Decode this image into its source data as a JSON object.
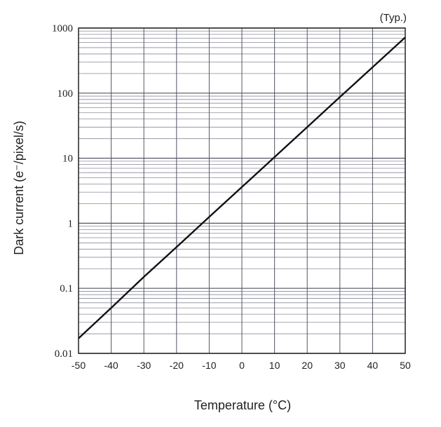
{
  "chart_data": {
    "type": "line",
    "annotation": "(Typ.)",
    "xlabel": "Temperature (°C)",
    "ylabel": "Dark current (e⁻/pixel/s)",
    "xlim": [
      -50,
      50
    ],
    "ylim": [
      0.01,
      1000
    ],
    "y_scale": "log",
    "grid": true,
    "x_ticks": [
      -50,
      -40,
      -30,
      -20,
      -10,
      0,
      10,
      20,
      30,
      40,
      50
    ],
    "x_tick_labels": [
      "-50",
      "-40",
      "-30",
      "-20",
      "-10",
      "0",
      "10",
      "20",
      "30",
      "40",
      "50"
    ],
    "y_ticks": [
      0.01,
      0.1,
      1,
      10,
      100,
      1000
    ],
    "y_tick_labels": [
      "0.01",
      "0.1",
      "1",
      "10",
      "100",
      "1000"
    ],
    "series": [
      {
        "x": [
          -50,
          -40,
          -30,
          -20,
          -10,
          0,
          10,
          20,
          30,
          40,
          50
        ],
        "y": [
          0.017,
          0.05,
          0.15,
          0.43,
          1.25,
          3.6,
          10.4,
          30,
          87,
          250,
          720
        ]
      }
    ]
  }
}
